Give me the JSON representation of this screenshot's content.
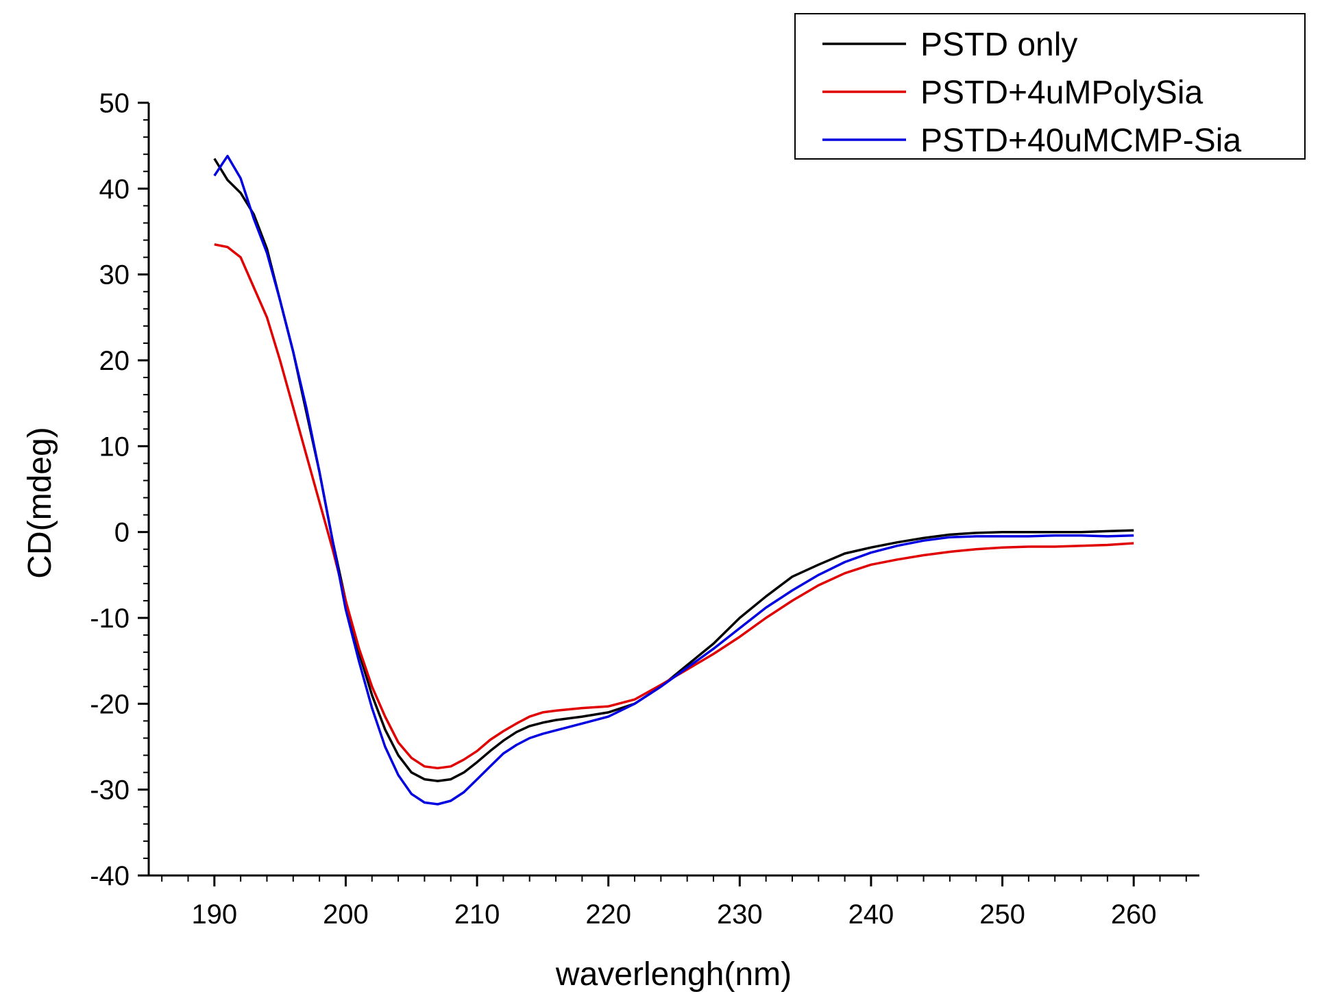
{
  "chart_data": {
    "type": "line",
    "title": "",
    "xlabel": "waverlengh(nm)",
    "ylabel": "CD(mdeg)",
    "xlim": [
      185,
      265
    ],
    "ylim": [
      -40,
      50
    ],
    "xticks": [
      190,
      200,
      210,
      220,
      230,
      240,
      250,
      260
    ],
    "yticks": [
      -40,
      -30,
      -20,
      -10,
      0,
      10,
      20,
      30,
      40,
      50
    ],
    "xtick_labels": [
      "190",
      "200",
      "210",
      "220",
      "230",
      "240",
      "250",
      "260"
    ],
    "ytick_labels": [
      "-40",
      "-30",
      "-20",
      "-10",
      "0",
      "10",
      "20",
      "30",
      "40",
      "50"
    ],
    "legend_position": "top-right",
    "series": [
      {
        "name": "PSTD only",
        "color": "#000000",
        "x": [
          190,
          191,
          192,
          193,
          194,
          195,
          196,
          197,
          198,
          199,
          200,
          201,
          202,
          203,
          204,
          205,
          206,
          207,
          208,
          209,
          210,
          211,
          212,
          213,
          214,
          215,
          216,
          218,
          220,
          222,
          224,
          226,
          228,
          230,
          232,
          234,
          236,
          238,
          240,
          242,
          244,
          246,
          248,
          250,
          252,
          254,
          256,
          258,
          260
        ],
        "y": [
          43.5,
          41,
          39.5,
          37,
          33,
          27,
          21,
          14,
          7,
          -1,
          -8,
          -14,
          -19,
          -23,
          -26,
          -28,
          -28.8,
          -29,
          -28.8,
          -28,
          -26.8,
          -25.5,
          -24.3,
          -23.3,
          -22.6,
          -22.2,
          -21.9,
          -21.5,
          -21,
          -20,
          -18,
          -15.5,
          -13,
          -10,
          -7.5,
          -5.2,
          -3.8,
          -2.5,
          -1.8,
          -1.2,
          -0.7,
          -0.3,
          -0.1,
          0,
          0,
          0,
          0,
          0.1,
          0.2
        ]
      },
      {
        "name": "PSTD+4uMPolySia",
        "color": "#e00000",
        "x": [
          190,
          191,
          192,
          193,
          194,
          195,
          196,
          197,
          198,
          199,
          200,
          201,
          202,
          203,
          204,
          205,
          206,
          207,
          208,
          209,
          210,
          211,
          212,
          213,
          214,
          215,
          216,
          218,
          220,
          222,
          224,
          226,
          228,
          230,
          232,
          234,
          236,
          238,
          240,
          242,
          244,
          246,
          248,
          250,
          252,
          254,
          256,
          258,
          260
        ],
        "y": [
          33.5,
          33.2,
          32,
          28.5,
          25,
          20,
          14.5,
          9,
          3.5,
          -2,
          -8,
          -13.5,
          -18,
          -21.5,
          -24.5,
          -26.3,
          -27.3,
          -27.5,
          -27.3,
          -26.5,
          -25.5,
          -24.2,
          -23.2,
          -22.3,
          -21.5,
          -21,
          -20.8,
          -20.5,
          -20.3,
          -19.5,
          -17.8,
          -16,
          -14.2,
          -12.2,
          -10,
          -8,
          -6.2,
          -4.8,
          -3.8,
          -3.2,
          -2.7,
          -2.3,
          -2,
          -1.8,
          -1.7,
          -1.7,
          -1.6,
          -1.5,
          -1.3
        ]
      },
      {
        "name": "PSTD+40uMCMP-Sia",
        "color": "#0000e0",
        "x": [
          190,
          191,
          192,
          193,
          194,
          195,
          196,
          197,
          198,
          199,
          200,
          201,
          202,
          203,
          204,
          205,
          206,
          207,
          208,
          209,
          210,
          211,
          212,
          213,
          214,
          215,
          216,
          218,
          220,
          222,
          224,
          226,
          228,
          230,
          232,
          234,
          236,
          238,
          240,
          242,
          244,
          246,
          248,
          250,
          252,
          254,
          256,
          258,
          260
        ],
        "y": [
          41.5,
          43.8,
          41.2,
          36.5,
          32.5,
          27,
          21,
          14.5,
          7,
          -1,
          -9,
          -15,
          -20.5,
          -25,
          -28.3,
          -30.5,
          -31.5,
          -31.7,
          -31.3,
          -30.3,
          -28.8,
          -27.3,
          -25.8,
          -24.8,
          -24,
          -23.5,
          -23.1,
          -22.3,
          -21.5,
          -20,
          -18,
          -15.8,
          -13.6,
          -11.2,
          -8.8,
          -6.8,
          -5,
          -3.5,
          -2.4,
          -1.6,
          -1,
          -0.6,
          -0.5,
          -0.5,
          -0.5,
          -0.4,
          -0.4,
          -0.5,
          -0.4
        ]
      }
    ]
  }
}
